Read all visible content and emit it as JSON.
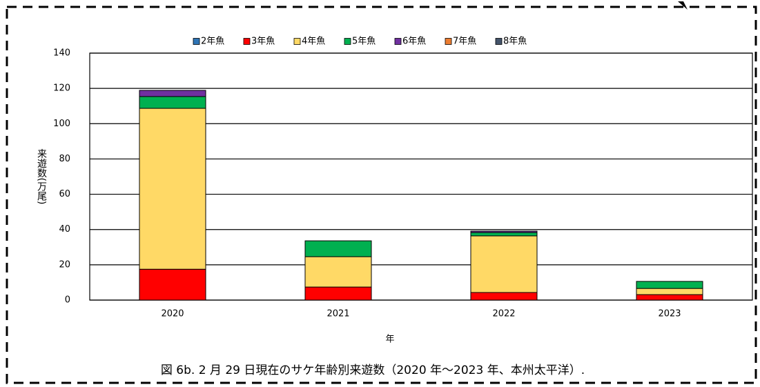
{
  "chart_data": {
    "type": "bar",
    "stacked": true,
    "categories": [
      "2020",
      "2021",
      "2022",
      "2023"
    ],
    "series": [
      {
        "name": "2年魚",
        "color": "#2e75b6",
        "values": [
          0,
          0,
          0,
          0
        ]
      },
      {
        "name": "3年魚",
        "color": "#ff0000",
        "values": [
          17.5,
          7.4,
          4.3,
          3.1
        ]
      },
      {
        "name": "4年魚",
        "color": "#ffd966",
        "values": [
          91.2,
          17.2,
          32.1,
          3.5
        ]
      },
      {
        "name": "5年魚",
        "color": "#00b050",
        "values": [
          6.7,
          9.0,
          1.9,
          4.0
        ]
      },
      {
        "name": "6年魚",
        "color": "#7030a0",
        "values": [
          3.5,
          0,
          0.8,
          0
        ]
      },
      {
        "name": "7年魚",
        "color": "#ed7d31",
        "values": [
          0,
          0,
          0,
          0
        ]
      },
      {
        "name": "8年魚",
        "color": "#44546a",
        "values": [
          0,
          0,
          0,
          0
        ]
      }
    ],
    "ylim": [
      0,
      140
    ],
    "yticks": [
      0,
      20,
      40,
      60,
      80,
      100,
      120,
      140
    ],
    "grid": true,
    "xlabel": "年",
    "ylabel": "来遊数(万尾)",
    "legend": "top",
    "caption": "図 6b. 2 月 29 日現在のサケ年齢別来遊数（2020 年～2023 年、本州太平洋）."
  }
}
